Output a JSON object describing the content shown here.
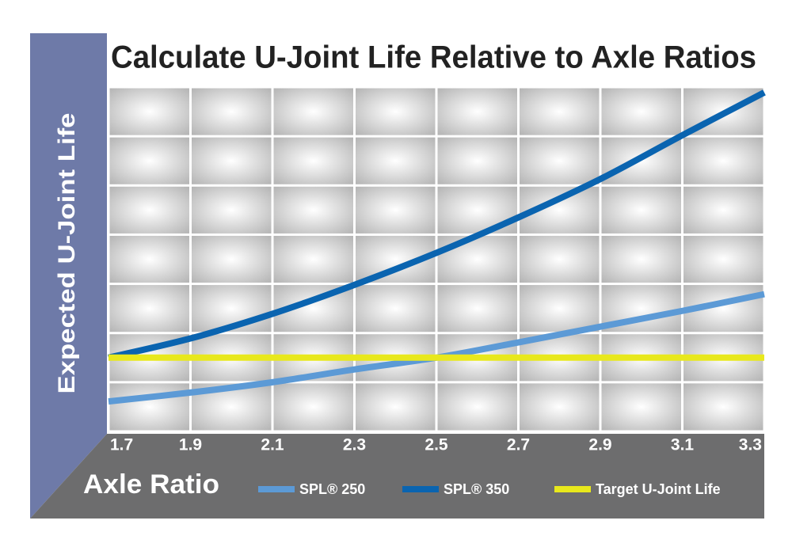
{
  "chart_data": {
    "type": "line",
    "title": "Calculate U-Joint Life Relative to Axle Ratios",
    "y_label": "Expected U-Joint Life",
    "x_label": "Axle Ratio",
    "x": [
      1.7,
      1.9,
      2.1,
      2.3,
      2.5,
      2.7,
      2.9,
      3.1,
      3.3
    ],
    "xlim": [
      1.7,
      3.3
    ],
    "xticks": [
      1.7,
      1.9,
      2.1,
      2.3,
      2.5,
      2.7,
      2.9,
      3.1,
      3.3
    ],
    "ylim": [
      0,
      7
    ],
    "series": [
      {
        "name": "SPL® 250",
        "color": "#5c9ad6",
        "values": [
          0.61,
          0.79,
          1.0,
          1.26,
          1.5,
          1.81,
          2.13,
          2.45,
          2.79
        ]
      },
      {
        "name": "SPL® 350",
        "color": "#0a64b0",
        "values": [
          1.5,
          1.89,
          2.39,
          2.98,
          3.63,
          4.35,
          5.13,
          6.02,
          6.89
        ]
      },
      {
        "name": "Target U-Joint Life",
        "color": "#e8e81c",
        "values": [
          1.5,
          1.5,
          1.5,
          1.5,
          1.5,
          1.5,
          1.5,
          1.5,
          1.5
        ]
      }
    ]
  }
}
